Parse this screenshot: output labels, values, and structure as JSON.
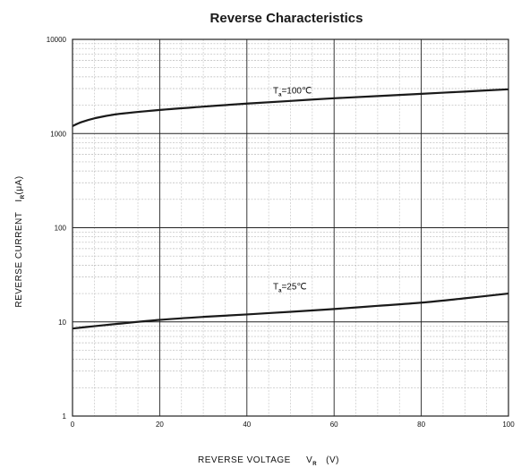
{
  "chart_data": {
    "type": "line",
    "title": "Reverse Characteristics",
    "xlabel": {
      "main": "REVERSE VOLTAGE",
      "symbol": "V",
      "subscript": "R",
      "unit": "(V)"
    },
    "ylabel": {
      "main": "REVERSE CURRENT",
      "symbol": "I",
      "subscript": "R",
      "unit": "(μA)"
    },
    "x_scale": "linear",
    "y_scale": "log",
    "xlim": [
      0,
      100
    ],
    "ylim": [
      1,
      10000
    ],
    "x_ticks": [
      "0",
      "20",
      "40",
      "60",
      "80",
      "100"
    ],
    "y_ticks": [
      "1",
      "10",
      "100",
      "1000",
      "10000"
    ],
    "grid": true,
    "series": [
      {
        "label_main": "T",
        "label_sub": "a",
        "label_rest": "=100℃",
        "x": [
          0,
          2,
          5,
          10,
          20,
          30,
          40,
          50,
          60,
          70,
          80,
          90,
          100
        ],
        "y": [
          1200,
          1320,
          1450,
          1600,
          1780,
          1930,
          2080,
          2220,
          2370,
          2500,
          2640,
          2790,
          2950
        ]
      },
      {
        "label_main": "T",
        "label_sub": "a",
        "label_rest": "=25℃",
        "x": [
          0,
          5,
          10,
          20,
          30,
          40,
          50,
          60,
          70,
          80,
          90,
          100
        ],
        "y": [
          8.5,
          9.0,
          9.5,
          10.5,
          11.3,
          12.0,
          12.8,
          13.7,
          14.8,
          16.0,
          17.8,
          20.0
        ]
      }
    ]
  }
}
